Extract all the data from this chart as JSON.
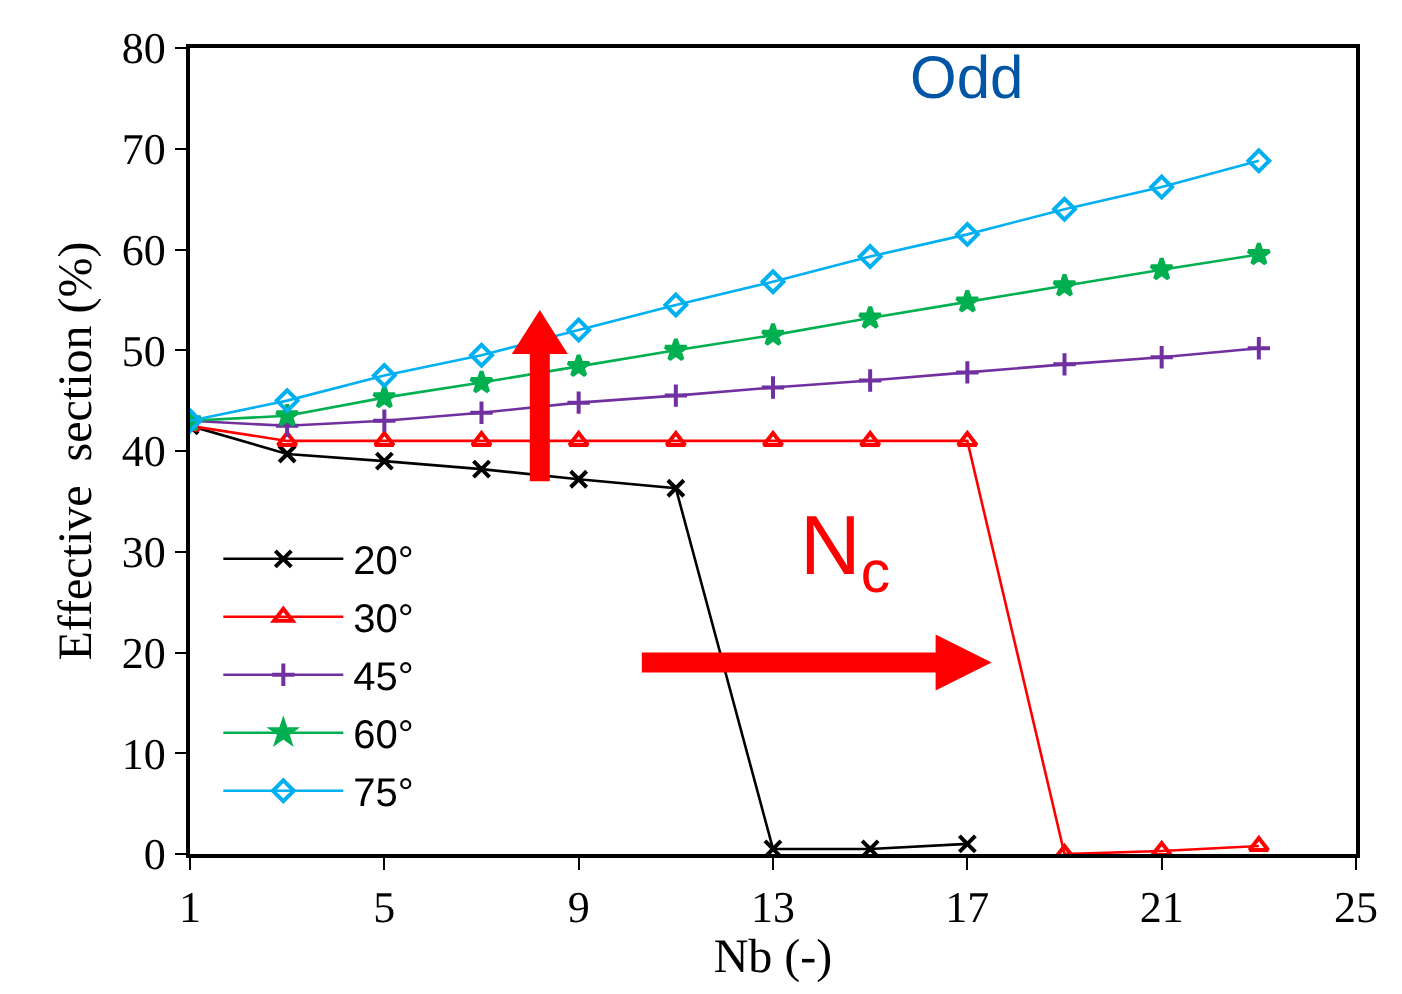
{
  "chart_data": {
    "type": "line",
    "xlabel": "Nb (-)",
    "ylabel": "Effective  section (%)",
    "xlim": [
      1,
      25
    ],
    "xticks": [
      1,
      5,
      9,
      13,
      17,
      21,
      25
    ],
    "ylim": [
      0,
      80
    ],
    "yticks": [
      0,
      10,
      20,
      30,
      40,
      50,
      60,
      70,
      80
    ],
    "grid": false,
    "legend": "bottom left",
    "line_style": "solid",
    "annotations": [
      "Odd",
      "N$_{c}$"
    ],
    "series": [
      {
        "name": "20°",
        "color": "#000000",
        "marker": "cross",
        "x": [
          1,
          3,
          5,
          7,
          9,
          11,
          13,
          15,
          17
        ],
        "values": [
          42.5,
          39.7,
          39,
          38.2,
          37.2,
          36.3,
          0.5,
          0.5,
          1.0
        ]
      },
      {
        "name": "30°",
        "color": "#ff0000",
        "marker": "triangle",
        "x": [
          1,
          3,
          5,
          7,
          9,
          11,
          13,
          15,
          17,
          19,
          21,
          23
        ],
        "values": [
          42.5,
          41,
          41,
          41,
          41,
          41,
          41,
          41,
          41,
          0,
          0.3,
          0.8
        ]
      },
      {
        "name": "45°",
        "color": "#7030a0",
        "marker": "cross",
        "x": [
          1,
          3,
          5,
          7,
          9,
          11,
          13,
          15,
          17,
          19,
          21,
          23
        ],
        "values": [
          43,
          42.5,
          43,
          43.8,
          44.8,
          45.5,
          46.3,
          47,
          47.8,
          48.6,
          49.3,
          50.2
        ]
      },
      {
        "name": "60°",
        "color": "#00b050",
        "marker": "star",
        "x": [
          1,
          3,
          5,
          7,
          9,
          11,
          13,
          15,
          17,
          19,
          21,
          23
        ],
        "values": [
          43,
          43.5,
          45.3,
          46.8,
          48.4,
          50,
          51.5,
          53.2,
          54.8,
          56.4,
          58,
          59.5
        ]
      },
      {
        "name": "75°",
        "color": "#00b0f0",
        "marker": "diamond",
        "x": [
          1,
          3,
          5,
          7,
          9,
          11,
          13,
          15,
          17,
          19,
          21,
          23
        ],
        "values": [
          43,
          45,
          47.5,
          49.5,
          52,
          54.5,
          56.8,
          59.3,
          61.5,
          64,
          66.2,
          68.8
        ]
      }
    ]
  }
}
